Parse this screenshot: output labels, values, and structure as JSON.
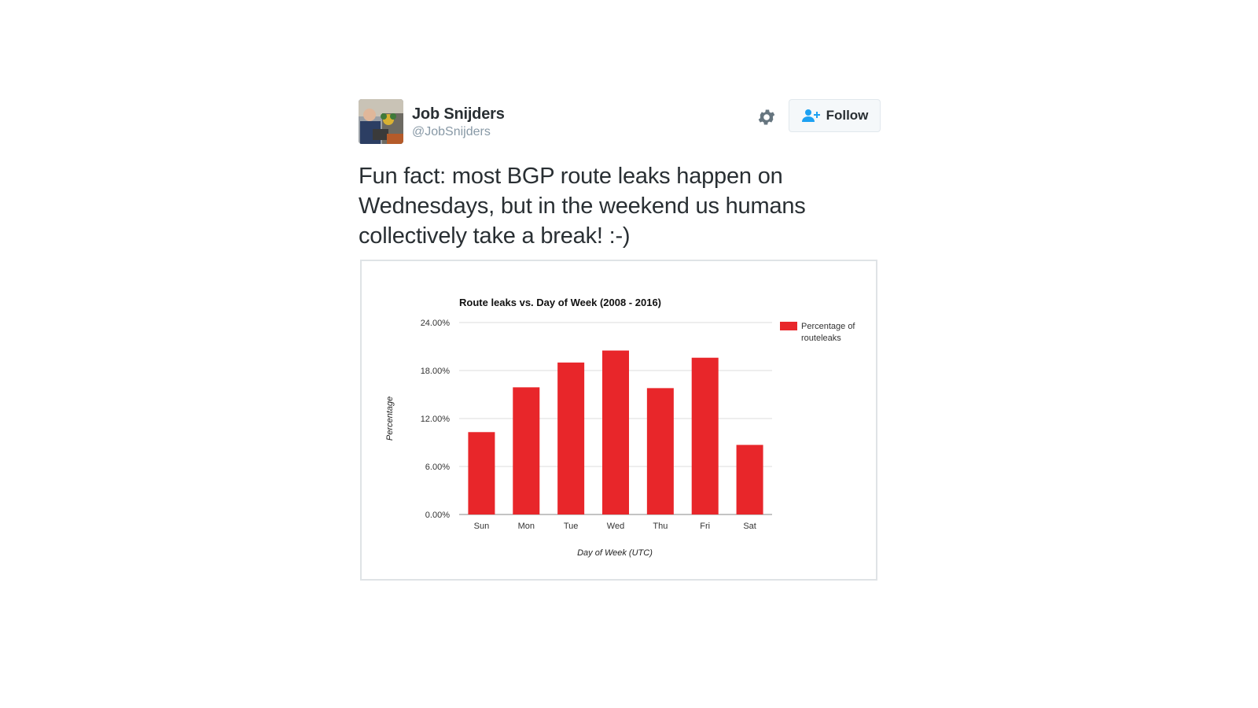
{
  "user": {
    "display_name": "Job Snijders",
    "handle": "@JobSnijders"
  },
  "actions": {
    "follow_label": "Follow",
    "settings_icon": "gear-icon",
    "follow_icon": "add-user-icon"
  },
  "tweet": {
    "text": "Fun fact: most BGP route leaks happen on Wednesdays, but in the weekend us humans collectively take a break! :-)"
  },
  "colors": {
    "bar": "#e8262a",
    "grid": "#dddddd",
    "follow_icon": "#1da1f2",
    "gear": "#66757f"
  },
  "chart_data": {
    "type": "bar",
    "title": "Route leaks vs. Day of Week (2008 - 2016)",
    "xlabel": "Day of Week (UTC)",
    "ylabel": "Percentage",
    "categories": [
      "Sun",
      "Mon",
      "Tue",
      "Wed",
      "Thu",
      "Fri",
      "Sat"
    ],
    "series": [
      {
        "name": "Percentage of routeleaks",
        "legend_lines": [
          "Percentage of",
          "routeleaks"
        ],
        "values": [
          10.3,
          15.9,
          19.0,
          20.5,
          15.8,
          19.6,
          8.7
        ]
      }
    ],
    "ylim": [
      0,
      24
    ],
    "y_ticks": [
      0,
      6,
      12,
      18,
      24
    ],
    "y_tick_labels": [
      "0.00%",
      "6.00%",
      "12.00%",
      "18.00%",
      "24.00%"
    ],
    "grid": true,
    "legend_position": "right"
  }
}
